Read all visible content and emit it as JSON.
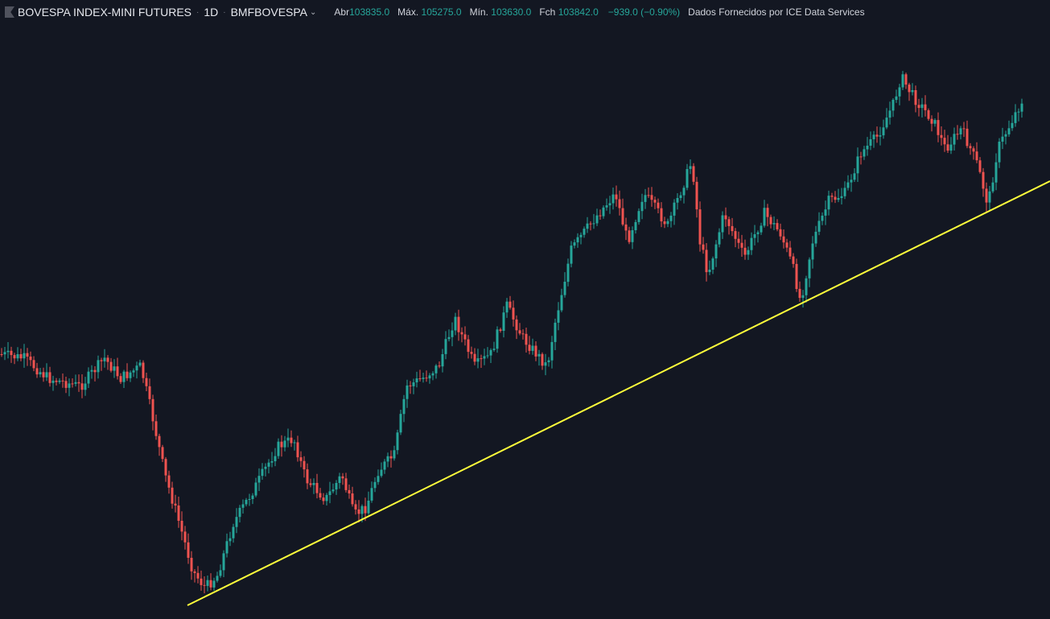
{
  "legend": {
    "symbol": "BOVESPA INDEX-MINI FUTURES",
    "interval": "1D",
    "exchange": "BMFBOVESPA",
    "ohlc": [
      {
        "label": "Abr",
        "value": "103835.0"
      },
      {
        "label": "Máx.",
        "value": "105275.0"
      },
      {
        "label": "Mín.",
        "value": "103630.0"
      },
      {
        "label": "Fch",
        "value": "103842.0"
      }
    ],
    "change": "−939.0 (−0.90%)",
    "provider": "Dados Fornecidos por ICE Data Services"
  },
  "colors": {
    "background": "#131722",
    "up": "#26a69a",
    "down": "#ef5350",
    "trendline": "#ffff3b",
    "text": "#d1d4dc",
    "muted": "#787b86"
  },
  "chart_data": {
    "type": "candlestick",
    "series": [
      {
        "name": "BOVESPA INDEX-MINI FUTURES"
      }
    ],
    "trendline": {
      "color": "#ffff3b"
    },
    "grid": false
  }
}
